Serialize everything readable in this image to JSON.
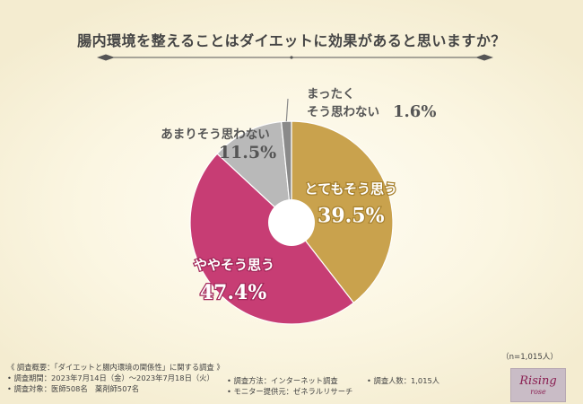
{
  "chart_data": {
    "type": "pie",
    "title": "腸内環境を整えることはダイエットに効果があると思いますか？",
    "slices": [
      {
        "label": "とてもそう思う",
        "value": 39.5,
        "display": "39.5%",
        "color": "#c9a24d"
      },
      {
        "label": "ややそう思う",
        "value": 47.4,
        "display": "47.4%",
        "color": "#c73d74"
      },
      {
        "label": "あまりそう思わない",
        "value": 11.5,
        "display": "11.5%",
        "color": "#b9b9b9"
      },
      {
        "label_lines": [
          "まったく",
          "そう思わない"
        ],
        "label": "まったくそう思わない",
        "value": 1.6,
        "display": "1.6%",
        "color": "#8a8a8a"
      }
    ],
    "sample_size": "（n=1,015人）"
  },
  "survey": {
    "overview": "《 調査概要：「ダイエットと腸内環境の関係性」に関する調査 》",
    "period": "• 調査期間：2023年7月14日（金）〜2023年7月18日（火）",
    "subjects": "• 調査対象：医師508名　薬剤師507名",
    "method": "• 調査方法：インターネット調査",
    "monitor": "• モニター提供元：ゼネラルリサーチ",
    "count": "• 調査人数：1,015人"
  },
  "logo": {
    "main": "Rising",
    "sub": "rose"
  },
  "colors": {
    "title_line": "#555555",
    "label_white": "#ffffff",
    "label_gray": "#555555"
  }
}
